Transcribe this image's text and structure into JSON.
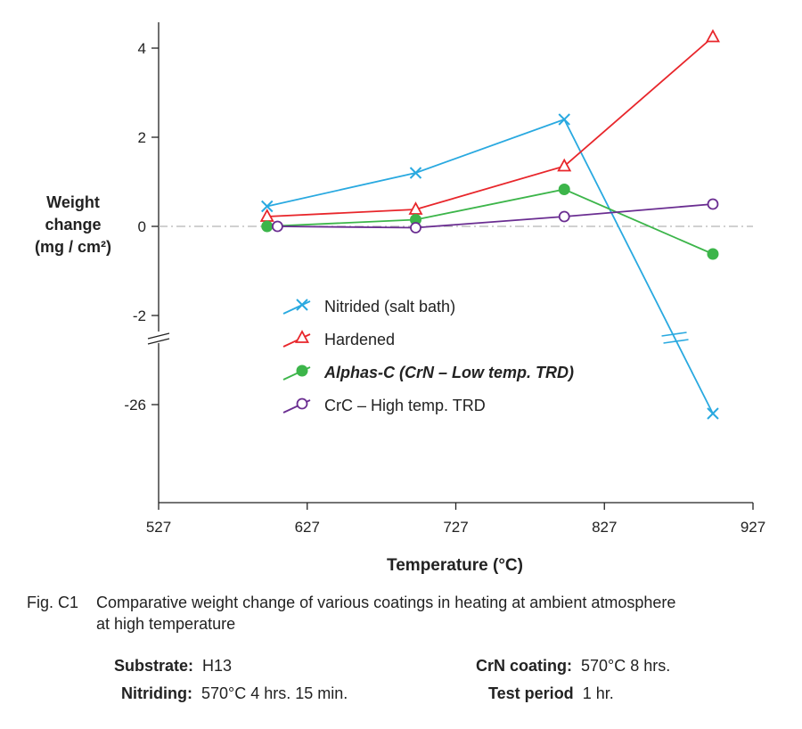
{
  "chart_data": {
    "type": "line",
    "xlabel": "Temperature (°C)",
    "ylabel": [
      "Weight",
      "change",
      "(mg / cm²)"
    ],
    "x_ticks": [
      "527",
      "627",
      "727",
      "827",
      "927"
    ],
    "xlim": [
      527,
      927
    ],
    "y_ticks": [
      "4",
      "2",
      "0",
      "-2",
      "-26"
    ],
    "y_axis_break": "between -2 and -26",
    "zero_line": true,
    "legend_placement": "center",
    "series": [
      {
        "name": "Nitrided (salt bath)",
        "color": "#29a9e0",
        "marker": "x",
        "x": [
          600,
          700,
          800,
          900
        ],
        "y": [
          0.45,
          1.2,
          2.4,
          -26.2
        ]
      },
      {
        "name": "Hardened",
        "color": "#e8262b",
        "marker": "open-triangle",
        "x": [
          600,
          700,
          800,
          900
        ],
        "y": [
          0.22,
          0.38,
          1.35,
          4.25
        ]
      },
      {
        "name": "Alphas-C (CrN – Low temp. TRD)",
        "color": "#3cb54a",
        "marker": "filled-circle",
        "x": [
          600,
          700,
          800,
          900
        ],
        "y": [
          0.0,
          0.15,
          0.83,
          -0.62
        ]
      },
      {
        "name": "CrC – High temp. TRD",
        "color": "#6a2d91",
        "marker": "open-circle",
        "x": [
          607,
          700,
          800,
          900
        ],
        "y": [
          0.0,
          -0.03,
          0.22,
          0.5
        ]
      }
    ]
  },
  "caption": {
    "number": "Fig. C1",
    "line1": "Comparative weight change of various coatings in heating at ambient atmosphere",
    "line2": "at high temperature"
  },
  "specs": {
    "substrate_label": "Substrate:",
    "substrate_value": "H13",
    "nitriding_label": "Nitriding:",
    "nitriding_value": "570°C 4 hrs. 15 min.",
    "crn_label": "CrN coating:",
    "crn_value": "570°C 8 hrs.",
    "test_label": "Test period",
    "test_value": "1 hr."
  }
}
